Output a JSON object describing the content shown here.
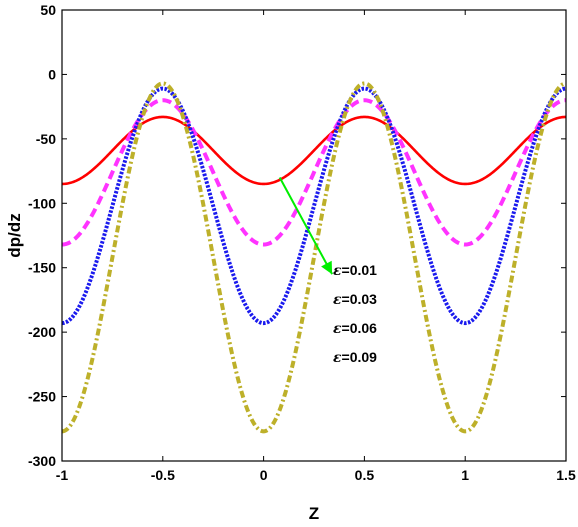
{
  "chart_data": {
    "type": "line",
    "xlabel": "Z",
    "ylabel": "dp/dz",
    "xlim": [
      -1,
      1.5
    ],
    "ylim": [
      -300,
      50
    ],
    "xticks": [
      -1,
      -0.5,
      0,
      0.5,
      1,
      1.5
    ],
    "yticks": [
      50,
      0,
      -50,
      -100,
      -150,
      -200,
      -250,
      -300
    ],
    "xtick_labels": [
      "-1",
      "-0.5",
      "0",
      "0.5",
      "1",
      "1.5"
    ],
    "ytick_labels": [
      "50",
      "0",
      "-50",
      "-100",
      "-150",
      "-200",
      "-250",
      "-300"
    ],
    "grid": false,
    "legend": {
      "placement": "center-right",
      "symbol": "ε",
      "entries": [
        "=0.01",
        "=0.03",
        "=0.06",
        "=0.09"
      ]
    },
    "annotation": {
      "type": "arrow",
      "color": "#00ee00",
      "from": [
        0.08,
        -80
      ],
      "to": [
        0.34,
        -155
      ]
    },
    "series": [
      {
        "legend_label": "=0.01",
        "color": "#ff0000",
        "style": "solid",
        "x": [
          -1,
          -0.75,
          -0.5,
          -0.25,
          0,
          0.25,
          0.5,
          0.75,
          1,
          1.25,
          1.5
        ],
        "y": [
          -85,
          -59,
          -33,
          -59,
          -85,
          -59,
          -33,
          -59,
          -85,
          -59,
          -33
        ]
      },
      {
        "legend_label": "=0.03",
        "color": "#ff33ff",
        "style": "dashed",
        "x": [
          -1,
          -0.75,
          -0.5,
          -0.25,
          0,
          0.25,
          0.5,
          0.75,
          1,
          1.25,
          1.5
        ],
        "y": [
          -132,
          -76,
          -20,
          -76,
          -132,
          -76,
          -20,
          -76,
          -132,
          -76,
          -20
        ]
      },
      {
        "legend_label": "=0.06",
        "color": "#1a1aee",
        "style": "dotted",
        "x": [
          -1,
          -0.75,
          -0.5,
          -0.25,
          0,
          0.25,
          0.5,
          0.75,
          1,
          1.25,
          1.5
        ],
        "y": [
          -193,
          -102,
          -11,
          -102,
          -193,
          -102,
          -11,
          -102,
          -193,
          -102,
          -11
        ]
      },
      {
        "legend_label": "=0.09",
        "color": "#bdb02a",
        "style": "dashdot",
        "x": [
          -1,
          -0.75,
          -0.5,
          -0.25,
          0,
          0.25,
          0.5,
          0.75,
          1,
          1.25,
          1.5
        ],
        "y": [
          -277,
          -142,
          -7,
          -142,
          -277,
          -142,
          -7,
          -142,
          -277,
          -142,
          -7
        ]
      }
    ]
  }
}
